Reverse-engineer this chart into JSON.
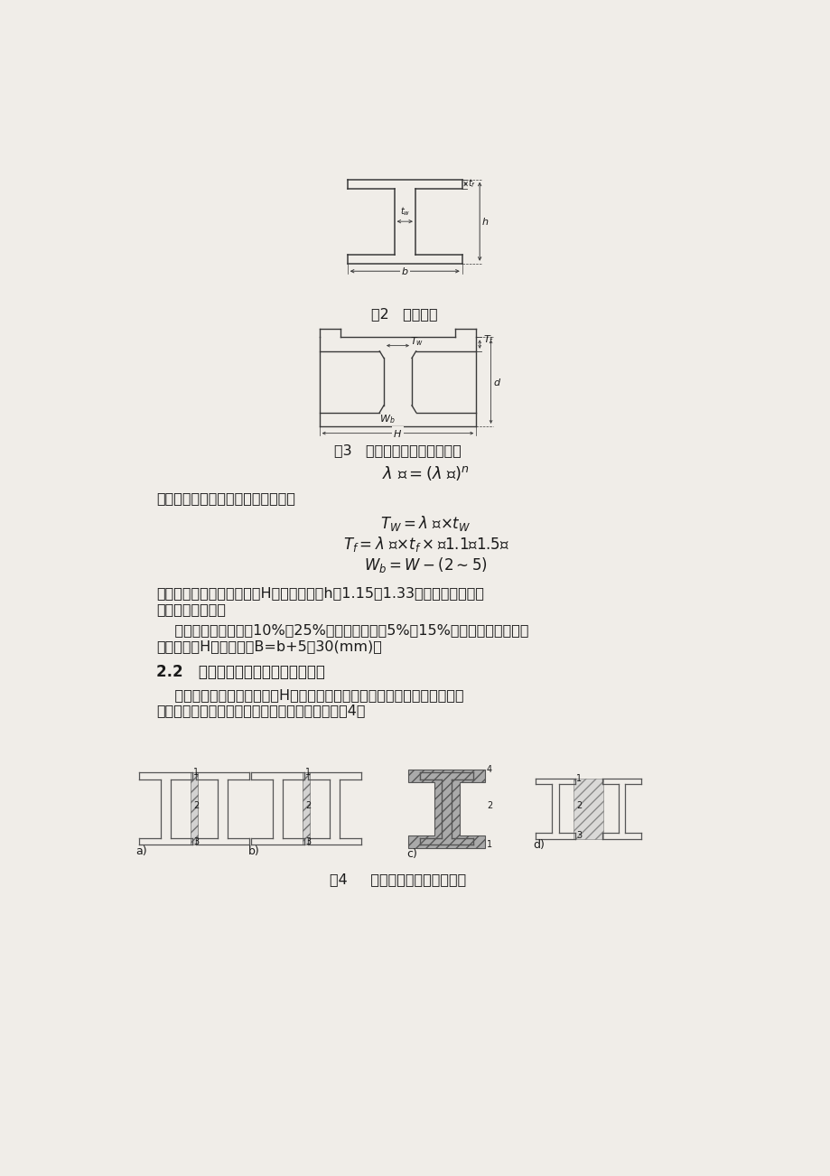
{
  "bg_color": "#f0ede8",
  "text_color": "#1a1a1a",
  "line_color": "#3a3a3a",
  "fig2_caption": "图2   成品尺寸",
  "fig3_caption": "图3   开坯机最终道次形状尺寸",
  "fig4_caption": "图4     开坯机上异型坯轧制种类",
  "text1": "由此可求得该道次的腹板翼缘厚度：",
  "para1a": "其中，平均延伸系数可根据H型钢腹板高度h取1.15～1.33（大规格取下限，",
  "para1b": "小规格取上限）。",
  "para2a": "    通常，内侧壁斜度取10%～25%，外侧壁斜度取5%～15%，从而可求得该道次",
  "para2b": "腹板总高度H；翼缘高度B=b+5～30(mm)。",
  "section": "2.2   在开坯机上异型坯轧制种类分析",
  "para3a": "    根据不同的异型坯及相应的H型钢产品规格，满足上述开坯机最终道次形状",
  "para3b": "尺寸，在二辊开坯机上有以下几种轧制情况，见图4。"
}
